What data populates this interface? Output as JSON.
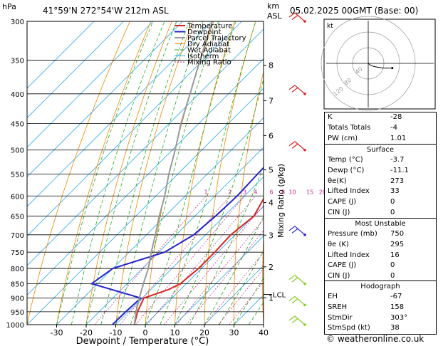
{
  "header": {
    "hpa_label": "hPa",
    "location": "41°59'N  272°54'W  212m  ASL",
    "km_label": "km",
    "asl_label": "ASL",
    "datetime": "05.02.2025  00GMT  (Base: 00)"
  },
  "chart_data": {
    "type": "skew-t",
    "pressure_levels": [
      300,
      350,
      400,
      450,
      500,
      550,
      600,
      650,
      700,
      750,
      800,
      850,
      900,
      950,
      1000
    ],
    "temp_ticks": [
      -30,
      -20,
      -10,
      0,
      10,
      20,
      30,
      40
    ],
    "xlim": [
      -40,
      40
    ],
    "ylim_hpa": [
      1000,
      300
    ],
    "xlabel": "Dewpoint / Temperature (°C)",
    "ylabel_right": "Mixing Ratio (g/kg)",
    "km_ticks": [
      {
        "label": "8",
        "p": 357
      },
      {
        "label": "7",
        "p": 411
      },
      {
        "label": "6",
        "p": 472
      },
      {
        "label": "5",
        "p": 541
      },
      {
        "label": "4",
        "p": 616
      },
      {
        "label": "3",
        "p": 701
      },
      {
        "label": "2",
        "p": 795
      },
      {
        "label": "1",
        "p": 899
      }
    ],
    "lcl": {
      "label": "LCL",
      "p": 887
    },
    "mixing_ratio_labels": [
      "1",
      "2",
      "3",
      "4",
      "6",
      "8",
      "10",
      "15",
      "20",
      "25"
    ],
    "mixing_ratio_values": [
      1,
      2,
      3,
      4,
      6,
      8,
      10,
      15,
      20,
      25
    ],
    "legend": [
      "Temperature",
      "Dewpoint",
      "Parcel Trajectory",
      "Dry Adiabat",
      "Wet Adiabat",
      "Isotherm",
      "Mixing Ratio"
    ],
    "series": [
      {
        "name": "Temperature",
        "color": "#dd2222",
        "points": [
          [
            1000,
            -3.7
          ],
          [
            950,
            -7
          ],
          [
            900,
            -9.5
          ],
          [
            870,
            -4
          ],
          [
            850,
            -2
          ],
          [
            800,
            -1
          ],
          [
            750,
            -1
          ],
          [
            700,
            -1.5
          ],
          [
            650,
            0
          ],
          [
            600,
            -3
          ],
          [
            550,
            -7.5
          ],
          [
            500,
            -12
          ],
          [
            450,
            -17
          ],
          [
            400,
            -24
          ],
          [
            350,
            -32
          ],
          [
            300,
            -41
          ]
        ]
      },
      {
        "name": "Dewpoint",
        "color": "#2222cc",
        "points": [
          [
            1000,
            -11.1
          ],
          [
            950,
            -11
          ],
          [
            900,
            -10.5
          ],
          [
            850,
            -32
          ],
          [
            800,
            -30
          ],
          [
            750,
            -18
          ],
          [
            700,
            -14
          ],
          [
            650,
            -13
          ],
          [
            600,
            -12.5
          ],
          [
            550,
            -13
          ],
          [
            500,
            -13.5
          ],
          [
            450,
            -17.5
          ],
          [
            400,
            -24.5
          ],
          [
            350,
            -32.5
          ],
          [
            300,
            -41.5
          ]
        ]
      },
      {
        "name": "Parcel Trajectory",
        "color": "#999999",
        "points": [
          [
            1000,
            -3.7
          ],
          [
            950,
            -7.5
          ],
          [
            900,
            -11
          ],
          [
            850,
            -14.5
          ],
          [
            800,
            -18
          ],
          [
            750,
            -22.5
          ],
          [
            700,
            -27
          ],
          [
            650,
            -32
          ],
          [
            600,
            -37
          ],
          [
            550,
            -43
          ],
          [
            500,
            -49
          ],
          [
            450,
            -56
          ],
          [
            400,
            -63
          ],
          [
            350,
            -71
          ],
          [
            300,
            -80
          ]
        ]
      }
    ]
  },
  "hodograph": {
    "label": "kt",
    "rings": [
      "40",
      "80",
      "120"
    ],
    "points_uv": [
      [
        0,
        0
      ],
      [
        1,
        -1
      ],
      [
        3,
        -2
      ],
      [
        8,
        -3
      ],
      [
        13,
        -3
      ]
    ]
  },
  "winds": [
    {
      "p": 300,
      "color": "#dd2222"
    },
    {
      "p": 400,
      "color": "#dd2222"
    },
    {
      "p": 500,
      "color": "#dd2222"
    },
    {
      "p": 700,
      "color": "#2222cc"
    },
    {
      "p": 850,
      "color": "#88cc22"
    },
    {
      "p": 925,
      "color": "#88cc22"
    },
    {
      "p": 1000,
      "color": "#88cc22"
    }
  ],
  "indices": [
    {
      "label": "K",
      "value": "-28"
    },
    {
      "label": "Totals Totals",
      "value": "-4"
    },
    {
      "label": "PW (cm)",
      "value": "1.01"
    }
  ],
  "surface": {
    "title": "Surface",
    "rows": [
      {
        "label": "Temp (°C)",
        "value": "-3.7"
      },
      {
        "label": "Dewp (°C)",
        "value": "-11.1"
      },
      {
        "label": "θe(K)",
        "value": "273"
      },
      {
        "label": "Lifted Index",
        "value": "33"
      },
      {
        "label": "CAPE (J)",
        "value": "0"
      },
      {
        "label": "CIN (J)",
        "value": "0"
      }
    ]
  },
  "most_unstable": {
    "title": "Most Unstable",
    "rows": [
      {
        "label": "Pressure (mb)",
        "value": "750"
      },
      {
        "label": "θe (K)",
        "value": "295"
      },
      {
        "label": "Lifted Index",
        "value": "16"
      },
      {
        "label": "CAPE (J)",
        "value": "0"
      },
      {
        "label": "CIN (J)",
        "value": "0"
      }
    ]
  },
  "hodograph_table": {
    "title": "Hodograph",
    "rows": [
      {
        "label": "EH",
        "value": "-67"
      },
      {
        "label": "SREH",
        "value": "158"
      },
      {
        "label": "StmDir",
        "value": "303°"
      },
      {
        "label": "StmSpd (kt)",
        "value": "38"
      }
    ]
  },
  "credit": "© weatheronline.co.uk",
  "colors": {
    "temperature": "#dd2222",
    "dewpoint": "#2222cc",
    "parcel": "#999999",
    "dry_adiabat": "#ee8800",
    "wet_adiabat": "#22aa22",
    "isotherm": "#33aaee",
    "mixing_ratio": "#cc2288"
  }
}
